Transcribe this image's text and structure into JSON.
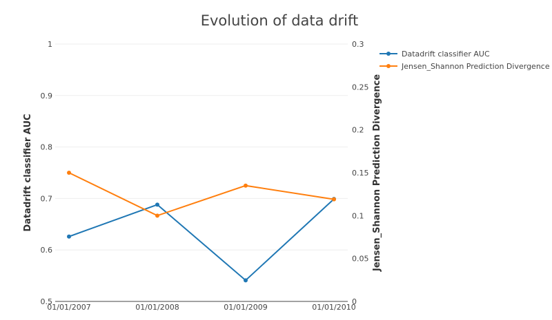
{
  "chart_data": {
    "type": "line",
    "title": "Evolution of data drift",
    "x": [
      "01/01/2007",
      "01/01/2008",
      "01/01/2009",
      "01/01/2010"
    ],
    "y_left": {
      "label": "Datadrift classifier AUC",
      "range": [
        0.5,
        1
      ],
      "ticks": [
        "0.5",
        "0.6",
        "0.7",
        "0.8",
        "0.9",
        "1"
      ]
    },
    "y_right": {
      "label": "Jensen_Shannon Prediction Divergence",
      "range": [
        0,
        0.3
      ],
      "ticks": [
        "0",
        "0.05",
        "0.1",
        "0.15",
        "0.2",
        "0.25",
        "0.3"
      ]
    },
    "series": [
      {
        "name": "Datadrift classifier AUC",
        "axis": "left",
        "color": "#1f77b4",
        "values": [
          0.626,
          0.688,
          0.541,
          0.699
        ]
      },
      {
        "name": "Jensen_Shannon Prediction Divergence",
        "axis": "right",
        "color": "#ff7f0e",
        "values": [
          0.15,
          0.1,
          0.135,
          0.119
        ]
      }
    ],
    "grid": true,
    "legend": "top-right"
  }
}
